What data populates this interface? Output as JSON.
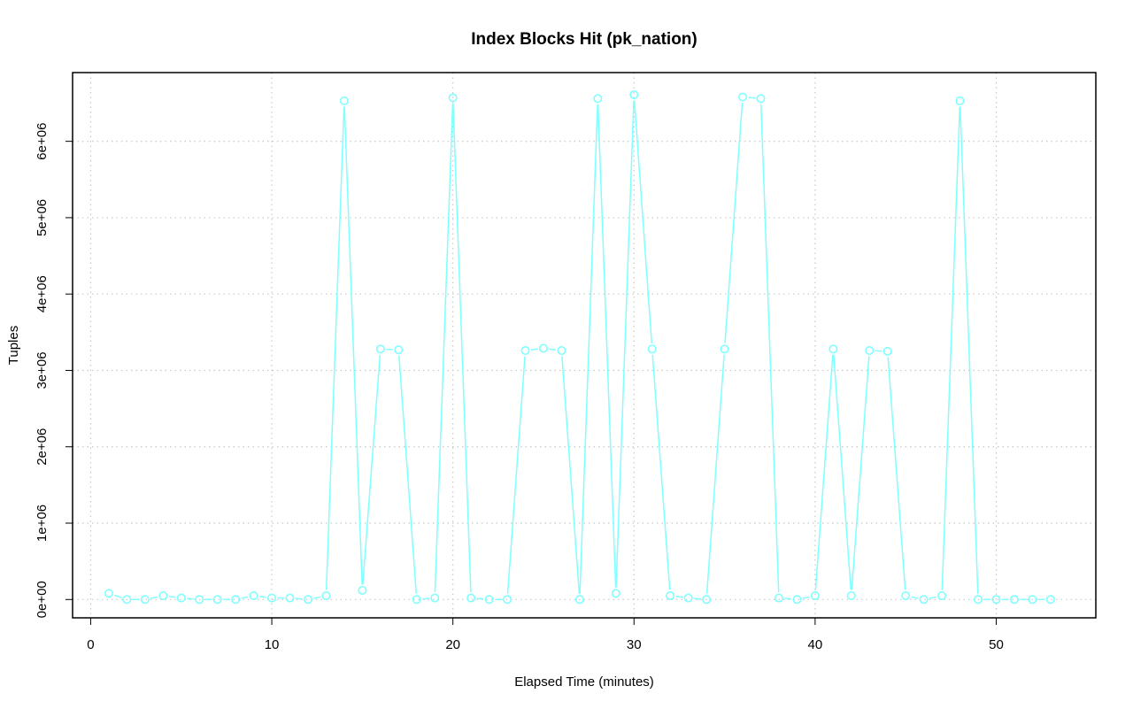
{
  "chart_data": {
    "type": "line",
    "title": "Index Blocks Hit (pk_nation)",
    "xlabel": "Elapsed Time (minutes)",
    "ylabel": "Tuples",
    "xlim": [
      -1,
      55.5
    ],
    "ylim": [
      -240000,
      6900000
    ],
    "x_ticks": [
      0,
      10,
      20,
      30,
      40,
      50
    ],
    "x_tick_labels": [
      "0",
      "10",
      "20",
      "30",
      "40",
      "50"
    ],
    "y_ticks": [
      0,
      1000000,
      2000000,
      3000000,
      4000000,
      5000000,
      6000000
    ],
    "y_tick_labels": [
      "0e+00",
      "1e+06",
      "2e+06",
      "3e+06",
      "4e+06",
      "5e+06",
      "6e+06"
    ],
    "grid": true,
    "line_style": "line with open circle markers",
    "series": [
      {
        "color": "#7fffff",
        "x": [
          1,
          2,
          3,
          4,
          5,
          6,
          7,
          8,
          9,
          10,
          11,
          12,
          13,
          14,
          15,
          16,
          17,
          18,
          19,
          20,
          21,
          22,
          23,
          24,
          25,
          26,
          27,
          28,
          29,
          30,
          31,
          32,
          33,
          34,
          35,
          36,
          37,
          38,
          39,
          40,
          41,
          42,
          43,
          44,
          45,
          46,
          47,
          48,
          49,
          50,
          51,
          52,
          53
        ],
        "values": [
          80000,
          0,
          0,
          50000,
          20000,
          0,
          0,
          0,
          50000,
          20000,
          20000,
          0,
          50000,
          6530000,
          120000,
          3280000,
          3270000,
          0,
          20000,
          6570000,
          20000,
          0,
          0,
          3260000,
          3290000,
          3260000,
          0,
          6560000,
          80000,
          6610000,
          3280000,
          50000,
          20000,
          0,
          3280000,
          6580000,
          6560000,
          20000,
          0,
          50000,
          3280000,
          50000,
          3260000,
          3250000,
          50000,
          0,
          50000,
          6530000,
          0,
          0,
          0,
          0,
          0
        ]
      }
    ]
  }
}
